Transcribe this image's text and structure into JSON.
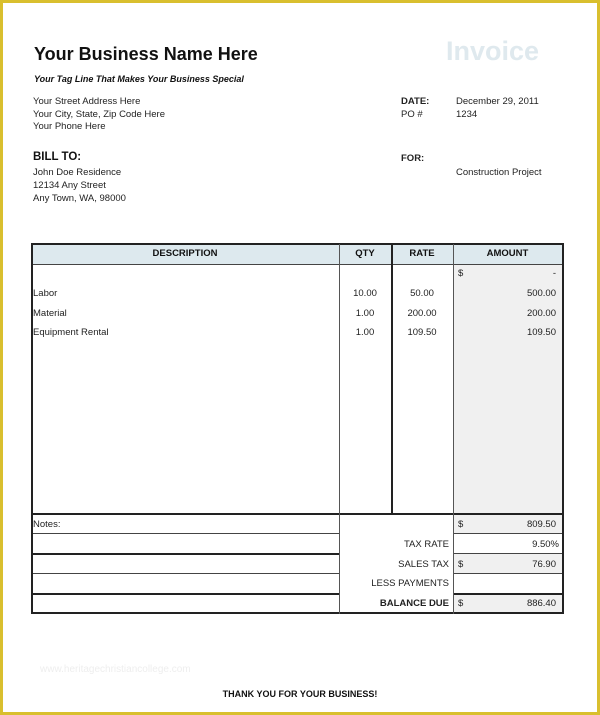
{
  "header": {
    "business_name": "Your Business Name Here",
    "doc_title": "Invoice",
    "tagline": "Your Tag Line That Makes Your Business Special",
    "address": [
      "Your Street Address Here",
      "Your City, State, Zip Code Here",
      "Your Phone Here"
    ],
    "date_label": "DATE:",
    "date_value": "December 29, 2011",
    "po_label": "PO #",
    "po_value": "1234"
  },
  "bill_to": {
    "label": "BILL TO:",
    "lines": [
      "John Doe Residence",
      "12134 Any Street",
      "Any Town, WA, 98000"
    ]
  },
  "for": {
    "label": "FOR:",
    "value": "Construction Project"
  },
  "table": {
    "columns": [
      "DESCRIPTION",
      "QTY",
      "RATE",
      "AMOUNT"
    ],
    "first_row": {
      "currency": "$",
      "amount": "-"
    },
    "rows": [
      {
        "description": "Labor",
        "qty": "10.00",
        "rate": "50.00",
        "amount": "500.00"
      },
      {
        "description": "Material",
        "qty": "1.00",
        "rate": "200.00",
        "amount": "200.00"
      },
      {
        "description": "Equipment Rental",
        "qty": "1.00",
        "rate": "109.50",
        "amount": "109.50"
      }
    ]
  },
  "summary": {
    "notes_label": "Notes:",
    "subtotal_currency": "$",
    "subtotal": "809.50",
    "tax_rate_label": "TAX RATE",
    "tax_rate": "9.50%",
    "sales_tax_label": "SALES TAX",
    "sales_tax_currency": "$",
    "sales_tax": "76.90",
    "less_payments_label": "LESS PAYMENTS",
    "less_payments": "",
    "balance_due_label": "BALANCE DUE",
    "balance_currency": "$",
    "balance_due": "886.40"
  },
  "watermark": "www.heritagechristiancollege.com",
  "footer": {
    "thanks": "THANK YOU FOR YOUR BUSINESS!"
  },
  "colors": {
    "frame": "#d9bf2e",
    "header_fill": "#dde9ee",
    "amount_fill": "#f0f0f0",
    "title": "#dfe9ee"
  }
}
